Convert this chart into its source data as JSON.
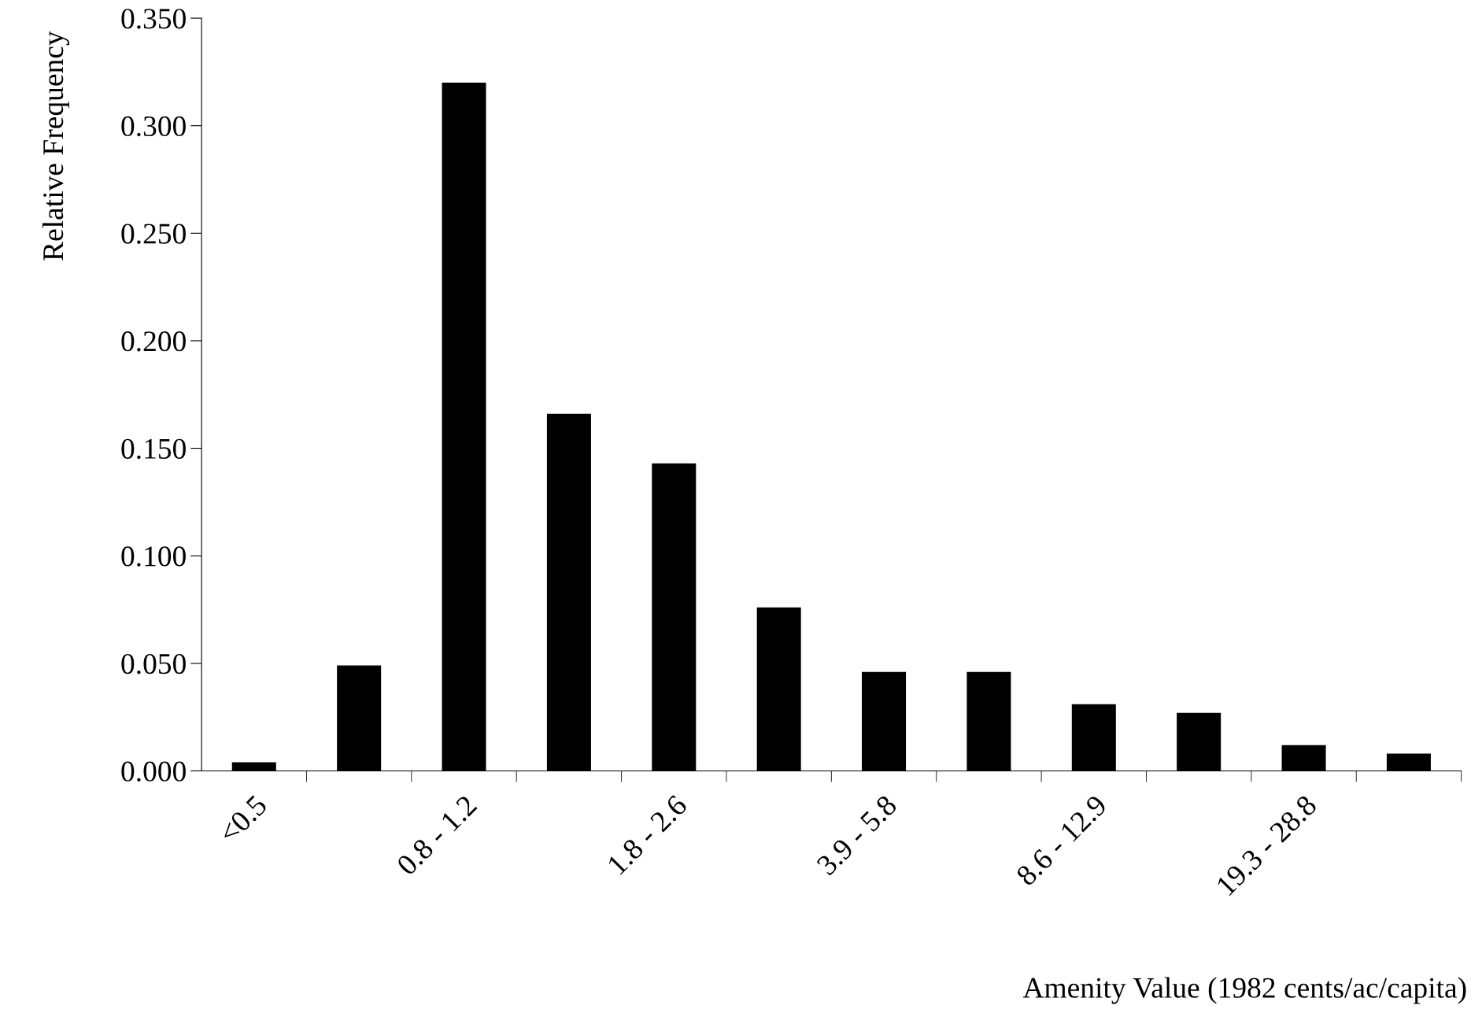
{
  "chart_data": {
    "type": "bar",
    "xlabel": "Amenity Value (1982 cents/ac/capita)",
    "ylabel": "Relative Frequency",
    "categories": [
      "<0.5",
      null,
      "0.8 - 1.2",
      null,
      "1.8 - 2.6",
      null,
      "3.9 - 5.8",
      null,
      "8.6 - 12.9",
      null,
      "19.3 - 28.8",
      null
    ],
    "values": [
      0.004,
      0.049,
      0.32,
      0.166,
      0.143,
      0.076,
      0.046,
      0.046,
      0.031,
      0.027,
      0.012,
      0.008
    ],
    "color": "#000000",
    "ylim": [
      0,
      0.35
    ],
    "yticks": [
      {
        "value": 0,
        "label": "0.000"
      },
      {
        "value": 0.05,
        "label": "0.050"
      },
      {
        "value": 0.1,
        "label": "0.100"
      },
      {
        "value": 0.15,
        "label": "0.150"
      },
      {
        "value": 0.2,
        "label": "0.200"
      },
      {
        "value": 0.25,
        "label": "0.250"
      },
      {
        "value": 0.3,
        "label": "0.300"
      },
      {
        "value": 0.35,
        "label": "0.350"
      }
    ],
    "grid": false,
    "legend": false
  }
}
